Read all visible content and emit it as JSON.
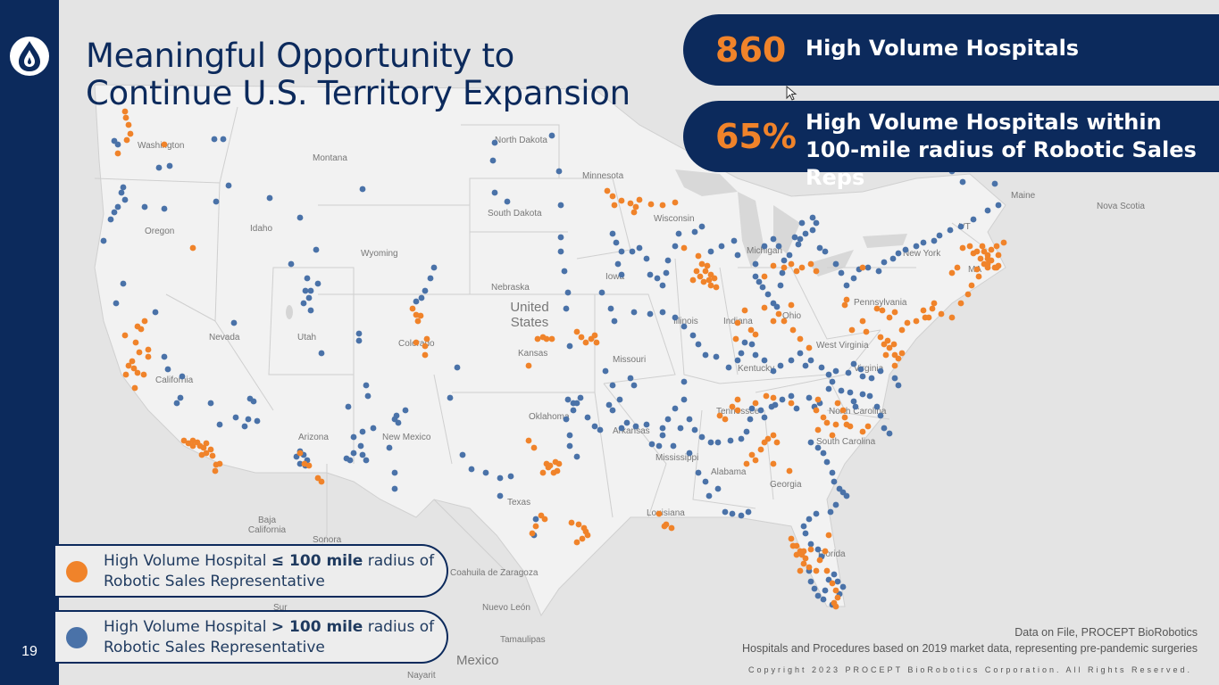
{
  "slide": {
    "title_line1": "Meaningful Opportunity to",
    "title_line2": "Continue U.S. Territory Expansion",
    "page_number": "19"
  },
  "stats": [
    {
      "value": "860",
      "label": "High Volume Hospitals"
    },
    {
      "value": "65%",
      "label": "High Volume Hospitals within 100-mile radius of Robotic Sales Reps"
    }
  ],
  "legend": [
    {
      "prefix": "High Volume Hospital ",
      "emphasis": "≤ 100 mile",
      "suffix": " radius of Robotic Sales Representative",
      "color": "#f0832a"
    },
    {
      "prefix": "High Volume Hospital ",
      "emphasis": "> 100 mile",
      "suffix": " radius of Robotic Sales Representative",
      "color": "#4a72a8"
    }
  ],
  "footnote": {
    "line1": "Data on File, PROCEPT BioRobotics",
    "line2": "Hospitals and Procedures based on 2019 market data, representing pre-pandemic surgeries"
  },
  "copyright": "Copyright 2023 PROCEPT BioRobotics Corporation. All Rights Reserved.",
  "map": {
    "labels": [
      "Washington",
      "Montana",
      "North Dakota",
      "Minnesota",
      "Oregon",
      "Idaho",
      "South Dakota",
      "Wisconsin",
      "Wyoming",
      "Michigan",
      "New York",
      "Maine",
      "Nova Scotia",
      "VT",
      "MA",
      "Nebraska",
      "Iowa",
      "United States",
      "Pennsylvania",
      "Illinois",
      "Indiana",
      "Ohio",
      "Nevada",
      "Utah",
      "Colorado",
      "Kansas",
      "Missouri",
      "West Virginia",
      "Kentucky",
      "Virginia",
      "California",
      "Tennessee",
      "North Carolina",
      "Oklahoma",
      "Arkansas",
      "South Carolina",
      "Arizona",
      "New Mexico",
      "Mississippi",
      "Alabama",
      "Georgia",
      "Texas",
      "Louisiana",
      "Florida",
      "Baja California",
      "Sonora",
      "Coahuila de Zaragoza",
      "Nuevo León",
      "Tamaulipas",
      "Mexico",
      "Nayarit",
      "Sur"
    ],
    "orange_color": "#f0832a",
    "blue_color": "#4a72a8"
  },
  "colors": {
    "navy": "#0c2a5c",
    "orange": "#f0832a",
    "blue": "#4a72a8"
  }
}
